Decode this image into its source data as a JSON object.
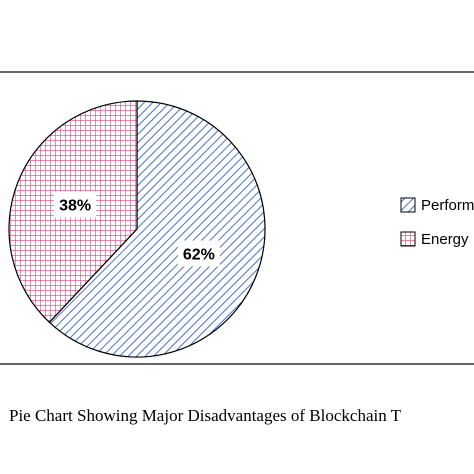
{
  "chart_data": {
    "type": "pie",
    "title": "",
    "caption": "Pie Chart Showing Major Disadvantages of Blockchain T",
    "slices": [
      {
        "label": "Perform",
        "value": 62,
        "display": "62%",
        "color": "#4a6fcf",
        "pattern": "diagonal-hatch"
      },
      {
        "label": "Energy",
        "value": 38,
        "display": "38%",
        "color": "#d9467a",
        "pattern": "grid-crosshatch"
      }
    ],
    "legend_position": "right"
  }
}
